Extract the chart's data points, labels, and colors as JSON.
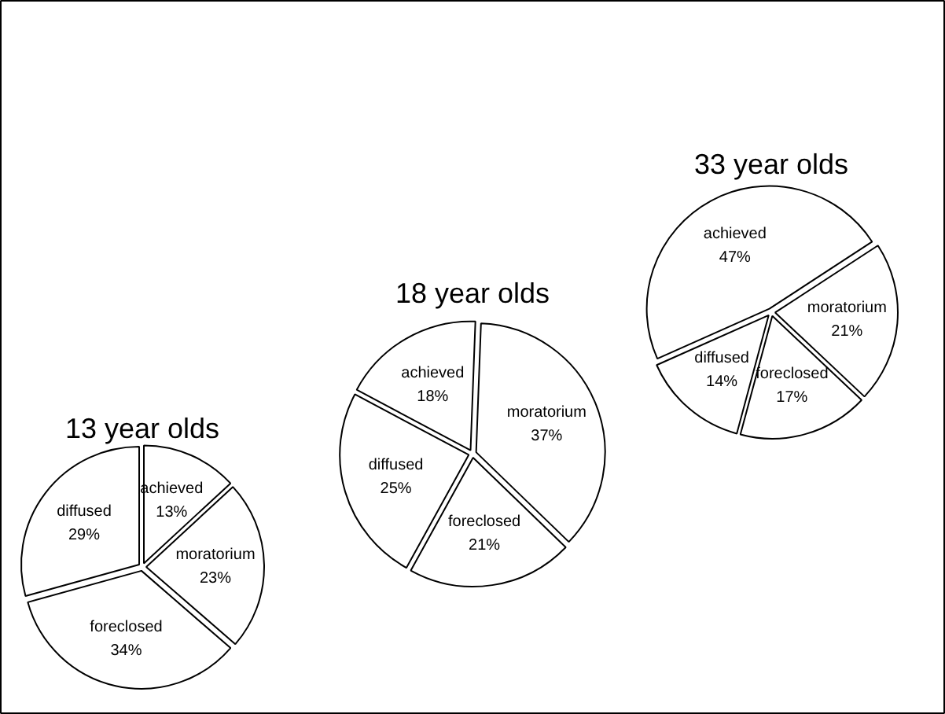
{
  "chart_data": [
    {
      "type": "pie",
      "title": "13 year olds",
      "categories": [
        "achieved",
        "moratorium",
        "foreclosed",
        "diffused"
      ],
      "values": [
        13,
        23,
        34,
        29
      ],
      "value_labels": [
        "13%",
        "23%",
        "34%",
        "29%"
      ],
      "colors": [
        "#ffffff",
        "#ffffff",
        "#ffffff",
        "#ffffff"
      ]
    },
    {
      "type": "pie",
      "title": "18 year olds",
      "categories": [
        "achieved",
        "moratorium",
        "foreclosed",
        "diffused"
      ],
      "values": [
        18,
        37,
        21,
        25
      ],
      "value_labels": [
        "18%",
        "37%",
        "21%",
        "25%"
      ],
      "colors": [
        "#ffffff",
        "#ffffff",
        "#ffffff",
        "#ffffff"
      ]
    },
    {
      "type": "pie",
      "title": "33 year olds",
      "categories": [
        "achieved",
        "moratorium",
        "foreclosed",
        "diffused"
      ],
      "values": [
        47,
        21,
        17,
        14
      ],
      "value_labels": [
        "47%",
        "21%",
        "17%",
        "14%"
      ],
      "colors": [
        "#ffffff",
        "#ffffff",
        "#ffffff",
        "#ffffff"
      ]
    }
  ]
}
